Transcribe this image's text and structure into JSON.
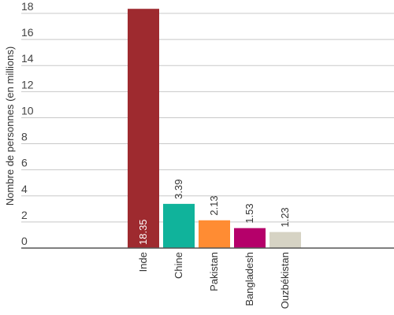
{
  "chart_data": {
    "type": "bar",
    "categories": [
      "Inde",
      "Chine",
      "Pakistan",
      "Bangladesh",
      "Ouzbékistan"
    ],
    "values": [
      18.35,
      3.39,
      2.13,
      1.53,
      1.23
    ],
    "data_labels": [
      "18.35",
      "3.39",
      "2.13",
      "1.53",
      "1.23"
    ],
    "colors": [
      "#9e2a2f",
      "#10b39b",
      "#ff8c33",
      "#b5006a",
      "#d6d3c4"
    ],
    "data_label_colors": [
      "#ffffff",
      "#333333",
      "#333333",
      "#333333",
      "#333333"
    ],
    "title": "",
    "xlabel": "",
    "ylabel": "Nombre de personnes (en millions)",
    "ylim": [
      0,
      18
    ],
    "yticks": [
      0,
      2,
      4,
      6,
      8,
      10,
      12,
      14,
      16,
      18
    ],
    "ytick_labels": [
      "0",
      "2",
      "4",
      "6",
      "8",
      "10",
      "12",
      "14",
      "16",
      "18"
    ],
    "grid": true,
    "legend": "none"
  }
}
